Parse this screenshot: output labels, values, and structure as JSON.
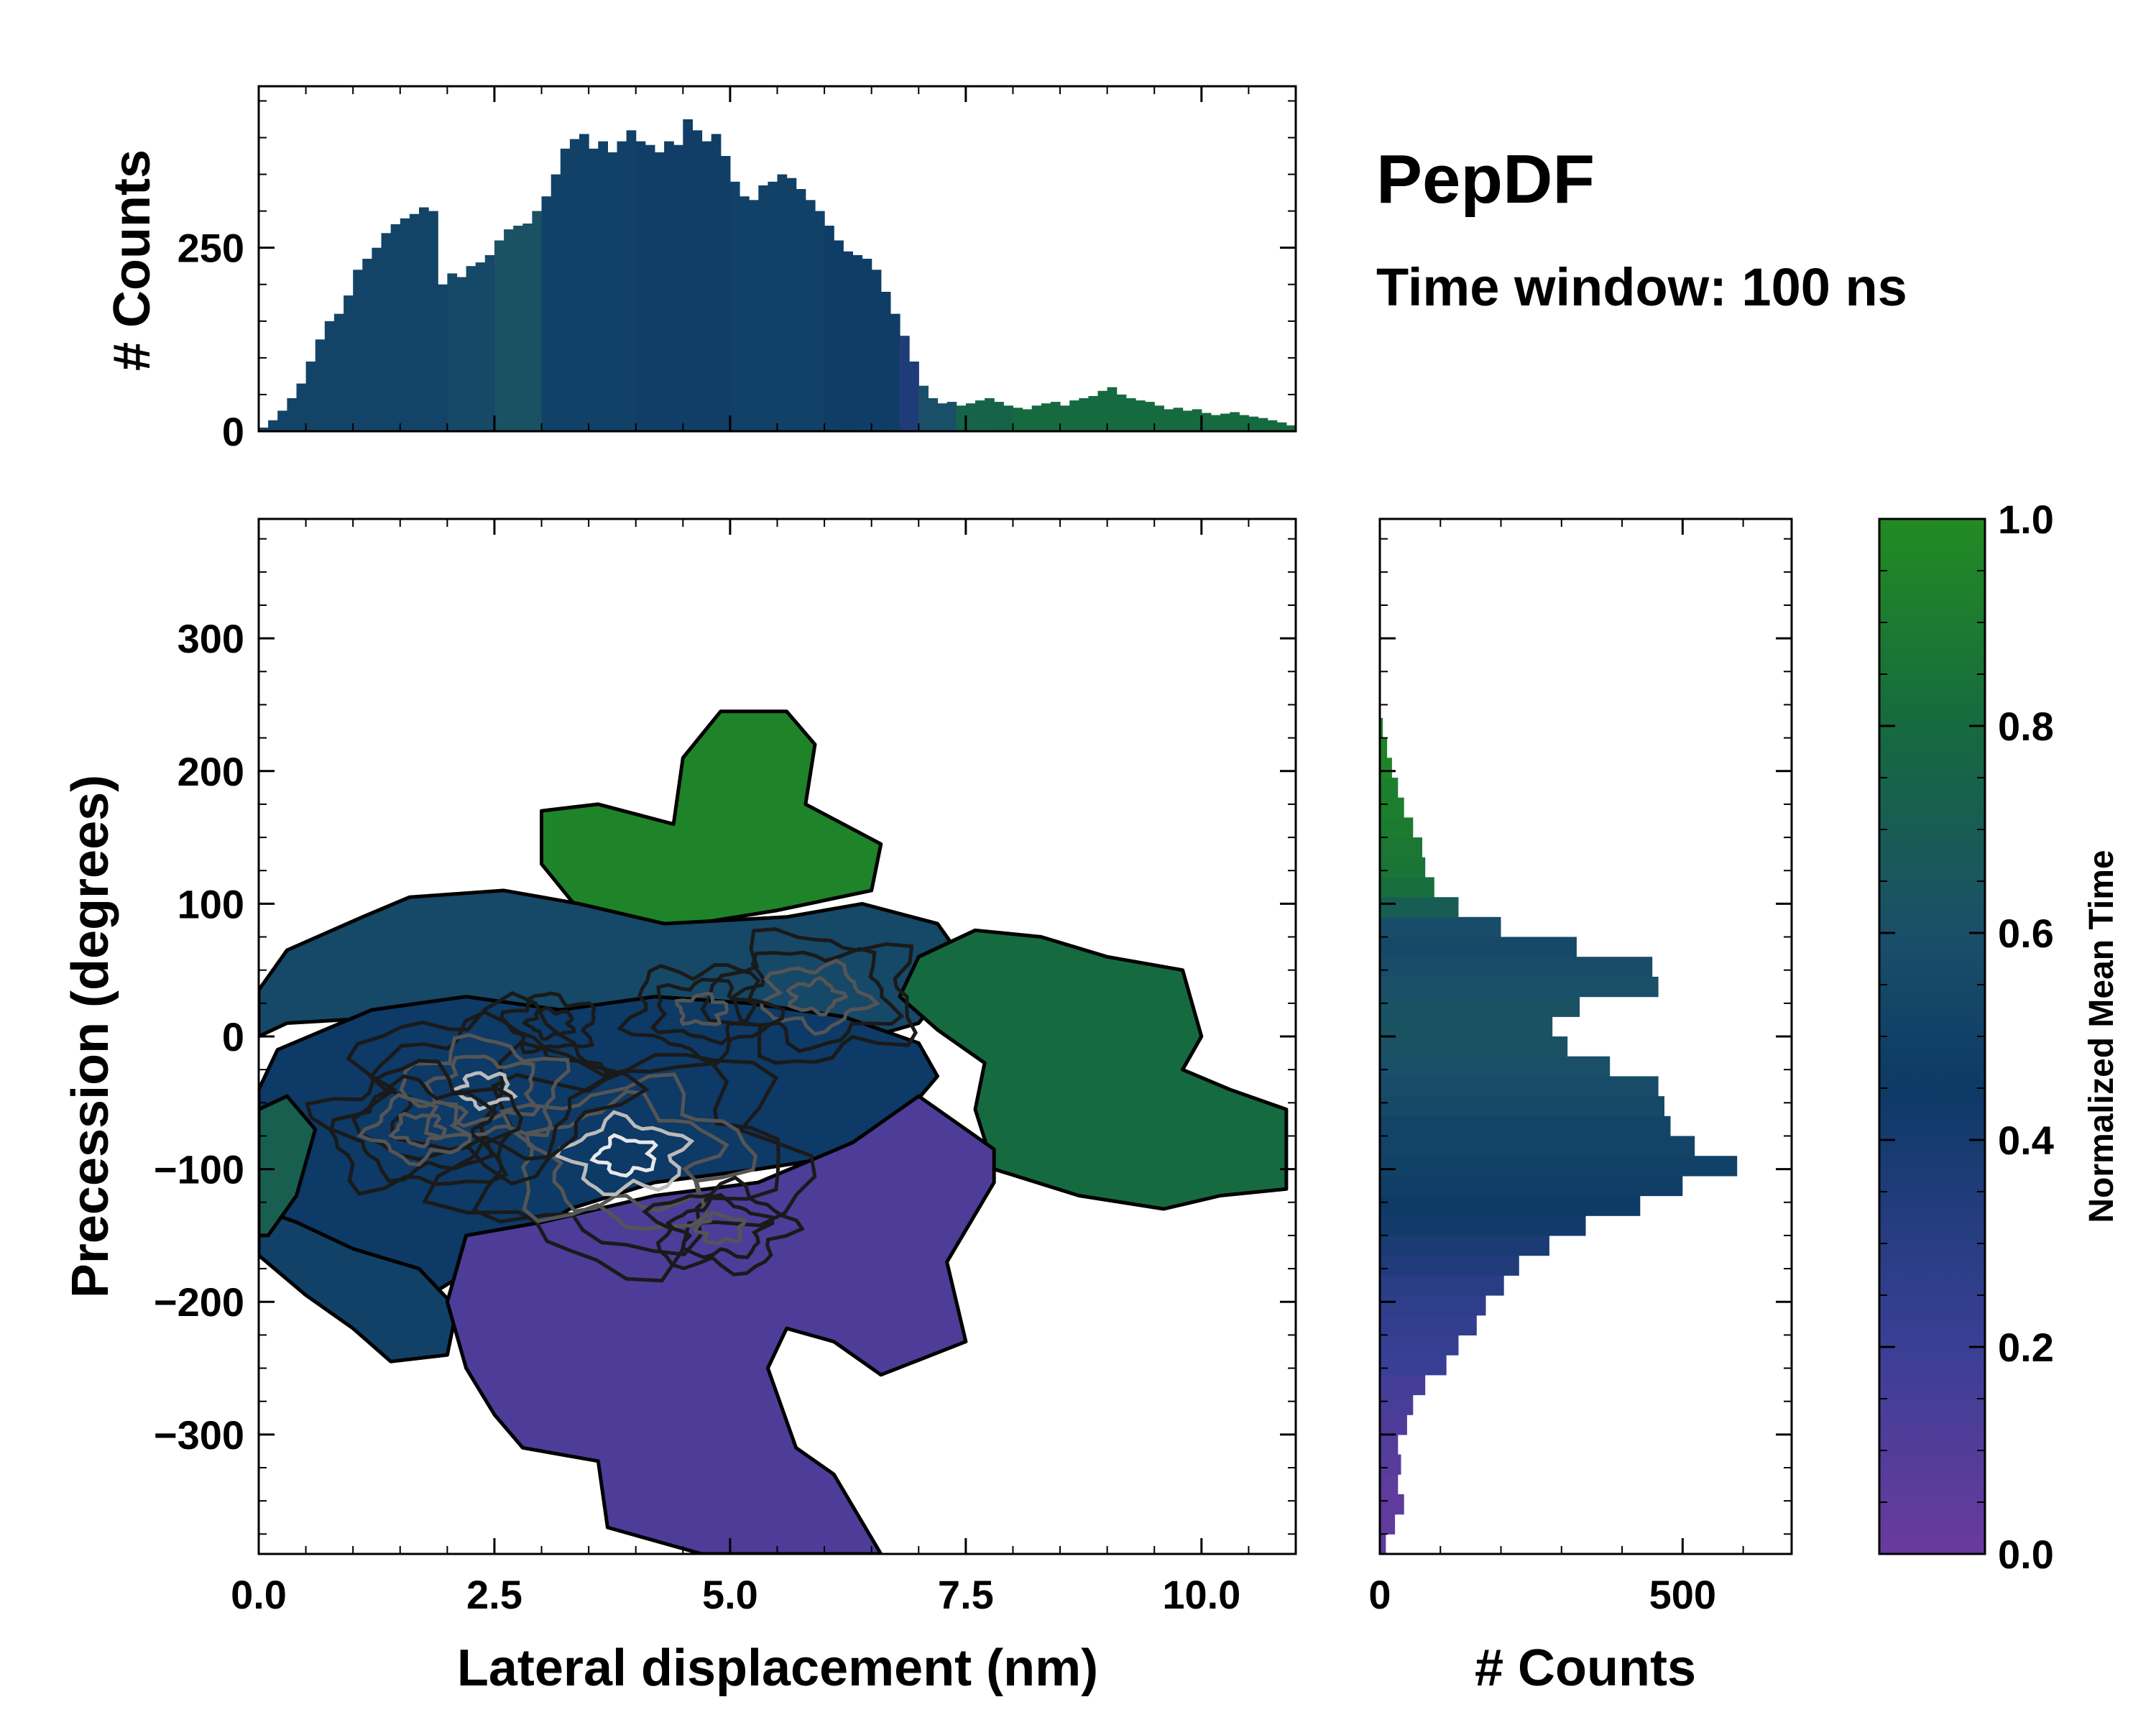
{
  "title": "PepDF",
  "subtitle": "Time window: 100 ns",
  "colors": {
    "c0": "#6a3a9e",
    "c02": "#3a3f96",
    "c04": "#1f3f7a",
    "c05": "#0d3a66",
    "c06": "#1a4f68",
    "c08": "#166a3f",
    "c1": "#228b22",
    "frame": "#000000",
    "contour_dark": "#1a1a1a",
    "contour_mid": "#555555",
    "contour_light": "#bbbbbb"
  },
  "chart_data": [
    {
      "id": "joint",
      "type": "heatmap",
      "xlabel": "Lateral displacement (nm)",
      "ylabel": "Precession (degrees)",
      "xlim": [
        0.0,
        11.0
      ],
      "ylim": [
        -390,
        390
      ],
      "xticks": [
        0.0,
        2.5,
        5.0,
        7.5,
        10.0
      ],
      "xtick_labels": [
        "0.0",
        "2.5",
        "5.0",
        "7.5",
        "10.0"
      ],
      "yticks": [
        -300,
        -200,
        -100,
        0,
        100,
        200,
        300
      ],
      "ytick_labels": [
        "−300",
        "−200",
        "−100",
        "0",
        "100",
        "200",
        "300"
      ],
      "regions": [
        {
          "name": "upper-green-lobe",
          "color_value": 0.95,
          "polygon": [
            [
              3.0,
              170
            ],
            [
              3.6,
              175
            ],
            [
              4.4,
              160
            ],
            [
              4.5,
              210
            ],
            [
              4.9,
              245
            ],
            [
              5.6,
              245
            ],
            [
              5.9,
              220
            ],
            [
              5.8,
              175
            ],
            [
              6.6,
              145
            ],
            [
              6.5,
              110
            ],
            [
              5.5,
              95
            ],
            [
              4.2,
              80
            ],
            [
              3.4,
              95
            ],
            [
              3.0,
              130
            ]
          ]
        },
        {
          "name": "upper-left-blue",
          "color_value": 0.55,
          "polygon": [
            [
              0.0,
              35
            ],
            [
              0.3,
              65
            ],
            [
              1.1,
              90
            ],
            [
              1.6,
              105
            ],
            [
              2.6,
              110
            ],
            [
              3.4,
              100
            ],
            [
              4.3,
              85
            ],
            [
              5.6,
              90
            ],
            [
              6.4,
              100
            ],
            [
              7.2,
              85
            ],
            [
              7.5,
              55
            ],
            [
              7.0,
              10
            ],
            [
              6.0,
              -10
            ],
            [
              4.5,
              -5
            ],
            [
              3.0,
              10
            ],
            [
              1.5,
              15
            ],
            [
              0.3,
              10
            ],
            [
              0.0,
              0
            ]
          ]
        },
        {
          "name": "right-green-region",
          "color_value": 0.8,
          "polygon": [
            [
              7.0,
              60
            ],
            [
              7.6,
              80
            ],
            [
              8.3,
              75
            ],
            [
              9.0,
              60
            ],
            [
              9.8,
              50
            ],
            [
              10.0,
              0
            ],
            [
              9.8,
              -25
            ],
            [
              10.3,
              -40
            ],
            [
              10.9,
              -55
            ],
            [
              10.9,
              -115
            ],
            [
              10.2,
              -120
            ],
            [
              9.6,
              -130
            ],
            [
              8.7,
              -120
            ],
            [
              7.8,
              -100
            ],
            [
              7.6,
              -55
            ],
            [
              7.7,
              -20
            ],
            [
              7.2,
              5
            ],
            [
              6.8,
              30
            ]
          ]
        },
        {
          "name": "central-blue-core",
          "color_value": 0.45,
          "polygon": [
            [
              0.2,
              -10
            ],
            [
              1.2,
              20
            ],
            [
              2.2,
              30
            ],
            [
              3.2,
              20
            ],
            [
              4.2,
              30
            ],
            [
              5.2,
              25
            ],
            [
              6.2,
              15
            ],
            [
              7.0,
              -5
            ],
            [
              7.2,
              -30
            ],
            [
              6.9,
              -55
            ],
            [
              6.2,
              -90
            ],
            [
              5.3,
              -100
            ],
            [
              4.2,
              -110
            ],
            [
              3.3,
              -130
            ],
            [
              2.5,
              -165
            ],
            [
              1.7,
              -200
            ],
            [
              1.0,
              -185
            ],
            [
              0.4,
              -160
            ],
            [
              0.0,
              -130
            ],
            [
              0.0,
              -40
            ]
          ]
        },
        {
          "name": "lower-left-blue",
          "color_value": 0.5,
          "polygon": [
            [
              0.4,
              -140
            ],
            [
              1.0,
              -160
            ],
            [
              1.7,
              -175
            ],
            [
              2.1,
              -205
            ],
            [
              2.0,
              -240
            ],
            [
              1.4,
              -245
            ],
            [
              1.0,
              -220
            ],
            [
              0.5,
              -195
            ],
            [
              0.0,
              -165
            ],
            [
              0.0,
              -130
            ]
          ]
        },
        {
          "name": "lower-purple-region",
          "color_value": 0.12,
          "polygon": [
            [
              2.2,
              -150
            ],
            [
              3.0,
              -140
            ],
            [
              4.2,
              -120
            ],
            [
              5.3,
              -110
            ],
            [
              6.3,
              -80
            ],
            [
              7.0,
              -45
            ],
            [
              7.8,
              -85
            ],
            [
              7.8,
              -110
            ],
            [
              7.3,
              -170
            ],
            [
              7.5,
              -230
            ],
            [
              6.6,
              -255
            ],
            [
              6.1,
              -230
            ],
            [
              5.6,
              -220
            ],
            [
              5.4,
              -250
            ],
            [
              5.7,
              -310
            ],
            [
              6.1,
              -330
            ],
            [
              6.6,
              -390
            ],
            [
              4.7,
              -390
            ],
            [
              3.7,
              -370
            ],
            [
              3.6,
              -320
            ],
            [
              2.8,
              -310
            ],
            [
              2.5,
              -285
            ],
            [
              2.2,
              -250
            ],
            [
              2.0,
              -200
            ]
          ]
        },
        {
          "name": "left-green-speckle",
          "color_value": 0.72,
          "polygon": [
            [
              0.0,
              -55
            ],
            [
              0.3,
              -45
            ],
            [
              0.6,
              -70
            ],
            [
              0.4,
              -120
            ],
            [
              0.1,
              -150
            ],
            [
              0.0,
              -150
            ]
          ]
        }
      ],
      "density_peaks": [
        {
          "x": 3.9,
          "y": -90,
          "level": 1.0
        },
        {
          "x": 2.4,
          "y": -40,
          "level": 0.75
        },
        {
          "x": 1.7,
          "y": -70,
          "level": 0.6
        },
        {
          "x": 5.9,
          "y": 30,
          "level": 0.7
        },
        {
          "x": 4.7,
          "y": 20,
          "level": 0.55
        },
        {
          "x": 4.9,
          "y": -145,
          "level": 0.45
        },
        {
          "x": 3.1,
          "y": 10,
          "level": 0.4
        }
      ]
    },
    {
      "id": "top-histogram",
      "type": "bar",
      "ylabel": "# Counts",
      "xlim": [
        0.0,
        11.0
      ],
      "ylim": [
        0,
        470
      ],
      "yticks": [
        0,
        250
      ],
      "ytick_labels": [
        "0",
        "250"
      ],
      "bin_centers": [
        0.05,
        0.15,
        0.25,
        0.35,
        0.45,
        0.55,
        0.65,
        0.75,
        0.85,
        0.95,
        1.05,
        1.15,
        1.25,
        1.35,
        1.45,
        1.55,
        1.65,
        1.75,
        1.85,
        1.95,
        2.05,
        2.15,
        2.25,
        2.35,
        2.45,
        2.55,
        2.65,
        2.75,
        2.85,
        2.95,
        3.05,
        3.15,
        3.25,
        3.35,
        3.45,
        3.55,
        3.65,
        3.75,
        3.85,
        3.95,
        4.05,
        4.15,
        4.25,
        4.35,
        4.45,
        4.55,
        4.65,
        4.75,
        4.85,
        4.95,
        5.05,
        5.15,
        5.25,
        5.35,
        5.45,
        5.55,
        5.65,
        5.75,
        5.85,
        5.95,
        6.05,
        6.15,
        6.25,
        6.35,
        6.45,
        6.55,
        6.65,
        6.75,
        6.85,
        6.95,
        7.05,
        7.15,
        7.25,
        7.35,
        7.45,
        7.55,
        7.65,
        7.75,
        7.85,
        7.95,
        8.05,
        8.15,
        8.25,
        8.35,
        8.45,
        8.55,
        8.65,
        8.75,
        8.85,
        8.95,
        9.05,
        9.15,
        9.25,
        9.35,
        9.45,
        9.55,
        9.65,
        9.75,
        9.85,
        9.95,
        10.05,
        10.15,
        10.25,
        10.35,
        10.45,
        10.55,
        10.65,
        10.75,
        10.85,
        10.95
      ],
      "values": [
        5,
        15,
        28,
        45,
        65,
        95,
        125,
        150,
        160,
        185,
        220,
        235,
        250,
        270,
        282,
        290,
        296,
        305,
        300,
        200,
        215,
        210,
        225,
        230,
        240,
        260,
        275,
        280,
        283,
        300,
        320,
        350,
        385,
        398,
        405,
        385,
        395,
        380,
        395,
        410,
        395,
        390,
        380,
        395,
        390,
        425,
        410,
        395,
        405,
        375,
        340,
        320,
        315,
        335,
        340,
        350,
        345,
        330,
        315,
        300,
        280,
        260,
        245,
        240,
        235,
        220,
        190,
        160,
        130,
        95,
        62,
        45,
        38,
        40,
        35,
        38,
        42,
        45,
        40,
        35,
        32,
        30,
        35,
        38,
        40,
        35,
        42,
        45,
        48,
        55,
        60,
        50,
        45,
        42,
        40,
        35,
        30,
        32,
        28,
        30,
        25,
        22,
        24,
        26,
        22,
        20,
        18,
        15,
        12,
        8
      ],
      "color_values": [
        0.52,
        0.52,
        0.52,
        0.52,
        0.52,
        0.52,
        0.52,
        0.52,
        0.52,
        0.52,
        0.52,
        0.52,
        0.52,
        0.52,
        0.52,
        0.52,
        0.52,
        0.52,
        0.52,
        0.52,
        0.55,
        0.55,
        0.55,
        0.55,
        0.55,
        0.62,
        0.62,
        0.62,
        0.62,
        0.62,
        0.5,
        0.5,
        0.5,
        0.5,
        0.5,
        0.5,
        0.5,
        0.5,
        0.5,
        0.5,
        0.48,
        0.48,
        0.48,
        0.48,
        0.48,
        0.48,
        0.48,
        0.48,
        0.48,
        0.48,
        0.5,
        0.5,
        0.5,
        0.5,
        0.5,
        0.5,
        0.5,
        0.5,
        0.5,
        0.5,
        0.47,
        0.47,
        0.47,
        0.47,
        0.47,
        0.47,
        0.47,
        0.47,
        0.35,
        0.35,
        0.6,
        0.6,
        0.6,
        0.6,
        0.75,
        0.75,
        0.75,
        0.75,
        0.75,
        0.75,
        0.8,
        0.8,
        0.8,
        0.8,
        0.8,
        0.8,
        0.8,
        0.8,
        0.8,
        0.8,
        0.8,
        0.8,
        0.8,
        0.8,
        0.8,
        0.8,
        0.8,
        0.8,
        0.8,
        0.8,
        0.8,
        0.8,
        0.8,
        0.8,
        0.8,
        0.8,
        0.8,
        0.8,
        0.8,
        0.8
      ]
    },
    {
      "id": "side-histogram",
      "type": "bar",
      "orientation": "horizontal",
      "xlabel": "# Counts",
      "xlim": [
        0,
        680
      ],
      "xticks": [
        0,
        500
      ],
      "xtick_labels": [
        "0",
        "500"
      ],
      "ylim": [
        -390,
        390
      ],
      "bin_centers": [
        -382.5,
        -367.5,
        -352.5,
        -337.5,
        -322.5,
        -307.5,
        -292.5,
        -277.5,
        -262.5,
        -247.5,
        -232.5,
        -217.5,
        -202.5,
        -187.5,
        -172.5,
        -157.5,
        -142.5,
        -127.5,
        -112.5,
        -97.5,
        -82.5,
        -67.5,
        -52.5,
        -37.5,
        -22.5,
        -7.5,
        7.5,
        22.5,
        37.5,
        52.5,
        67.5,
        82.5,
        97.5,
        112.5,
        127.5,
        142.5,
        157.5,
        172.5,
        187.5,
        202.5,
        217.5,
        232.5
      ],
      "values": [
        10,
        25,
        40,
        30,
        35,
        30,
        45,
        55,
        75,
        110,
        130,
        160,
        175,
        205,
        230,
        280,
        340,
        430,
        500,
        590,
        520,
        480,
        470,
        460,
        380,
        310,
        285,
        330,
        460,
        450,
        325,
        200,
        130,
        90,
        75,
        70,
        55,
        40,
        30,
        20,
        12,
        5
      ],
      "color_values": [
        0.05,
        0.05,
        0.05,
        0.06,
        0.08,
        0.1,
        0.12,
        0.14,
        0.16,
        0.2,
        0.22,
        0.24,
        0.26,
        0.3,
        0.34,
        0.38,
        0.42,
        0.45,
        0.48,
        0.5,
        0.52,
        0.52,
        0.55,
        0.57,
        0.6,
        0.62,
        0.63,
        0.62,
        0.6,
        0.58,
        0.55,
        0.58,
        0.7,
        0.82,
        0.86,
        0.88,
        0.9,
        0.92,
        0.92,
        0.95,
        0.95,
        0.95
      ]
    },
    {
      "id": "colorbar",
      "type": "colorbar",
      "label": "Normalized Mean Time",
      "range": [
        0.0,
        1.0
      ],
      "ticks": [
        0.0,
        0.2,
        0.4,
        0.6,
        0.8,
        1.0
      ],
      "tick_labels": [
        "0.0",
        "0.2",
        "0.4",
        "0.6",
        "0.8",
        "1.0"
      ]
    }
  ]
}
